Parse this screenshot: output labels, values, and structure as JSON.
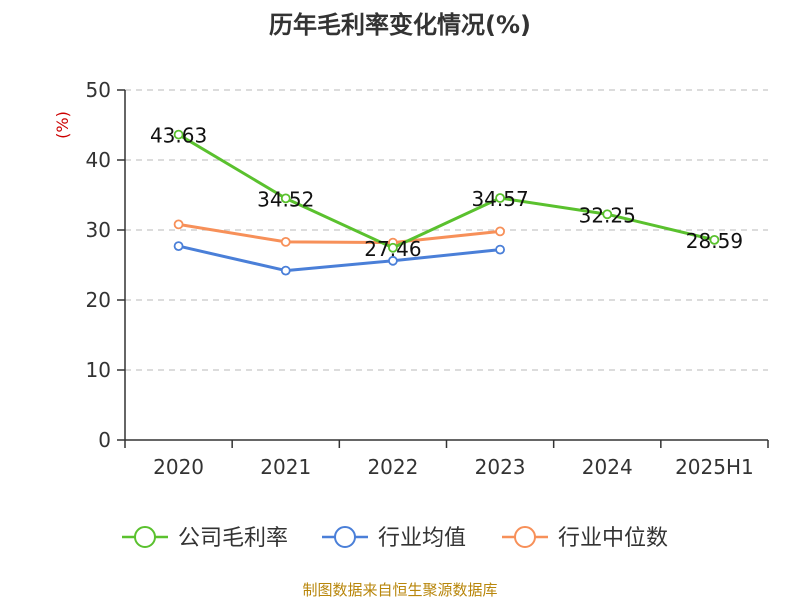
{
  "chart_data": {
    "type": "line",
    "title": "历年毛利率变化情况(%)",
    "ylabel": "(%)",
    "categories": [
      "2020",
      "2021",
      "2022",
      "2023",
      "2024",
      "2025H1"
    ],
    "ylim": [
      0,
      50
    ],
    "yticks": [
      "0",
      "10",
      "20",
      "30",
      "40",
      "50"
    ],
    "grid": true,
    "legend_position": "bottom",
    "series": [
      {
        "name": "公司毛利率",
        "color": "#5ac12e",
        "values": [
          43.63,
          34.52,
          27.46,
          34.57,
          32.25,
          28.59
        ],
        "labels": [
          "43.63",
          "34.52",
          "27.46",
          "34.57",
          "32.25",
          "28.59"
        ]
      },
      {
        "name": "行业均值",
        "color": "#4a7fd8",
        "values": [
          27.7,
          24.2,
          25.6,
          27.2,
          null,
          null
        ]
      },
      {
        "name": "行业中位数",
        "color": "#f79059",
        "values": [
          30.8,
          28.3,
          28.2,
          29.8,
          null,
          null
        ]
      }
    ],
    "source": "制图数据来自恒生聚源数据库"
  }
}
